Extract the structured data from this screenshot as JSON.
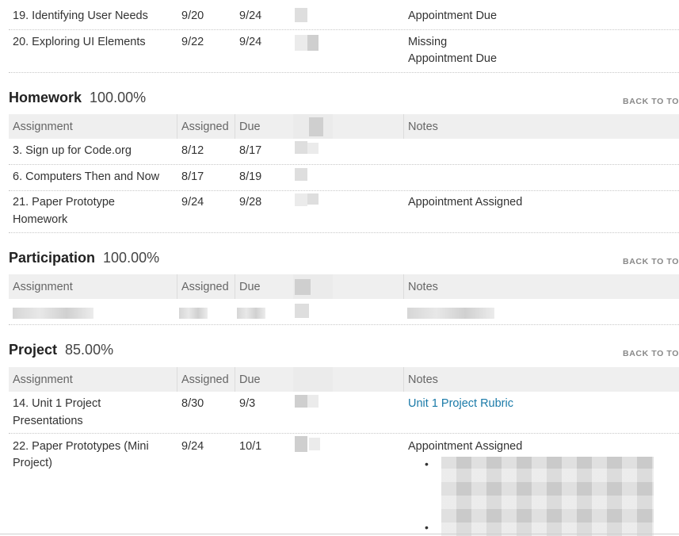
{
  "columns": {
    "assignment": "Assignment",
    "assigned": "Assigned",
    "due": "Due",
    "notes": "Notes"
  },
  "back_label": "BACK TO TO",
  "top_rows": [
    {
      "assignment": "19. Identifying User Needs",
      "assigned": "9/20",
      "due": "9/24",
      "notes": "Appointment Due"
    },
    {
      "assignment": "20. Exploring UI Elements",
      "assigned": "9/22",
      "due": "9/24",
      "notes": "Missing",
      "notes2": "Appointment Due"
    }
  ],
  "sections": [
    {
      "title": "Homework",
      "percent": "100.00%",
      "rows": [
        {
          "assignment": "3. Sign up for Code.org",
          "assigned": "8/12",
          "due": "8/17",
          "notes": ""
        },
        {
          "assignment": "6. Computers Then and Now",
          "assigned": "8/17",
          "due": "8/19",
          "notes": ""
        },
        {
          "assignment": "21. Paper Prototype",
          "assignment2": "Homework",
          "assigned": "9/24",
          "due": "9/28",
          "notes": "Appointment Assigned"
        }
      ]
    },
    {
      "title": "Participation",
      "percent": "100.00%",
      "rows": []
    },
    {
      "title": "Project",
      "percent": "85.00%",
      "rows": [
        {
          "assignment": "14. Unit 1 Project",
          "assignment2": "Presentations",
          "assigned": "8/30",
          "due": "9/3",
          "notes": "Unit 1 Project Rubric"
        },
        {
          "assignment": "22. Paper Prototypes (Mini",
          "assignment2": "Project)",
          "assigned": "9/24",
          "due": "10/1",
          "notes": "Appointment Assigned"
        }
      ]
    }
  ],
  "bullet_glyph": "•"
}
